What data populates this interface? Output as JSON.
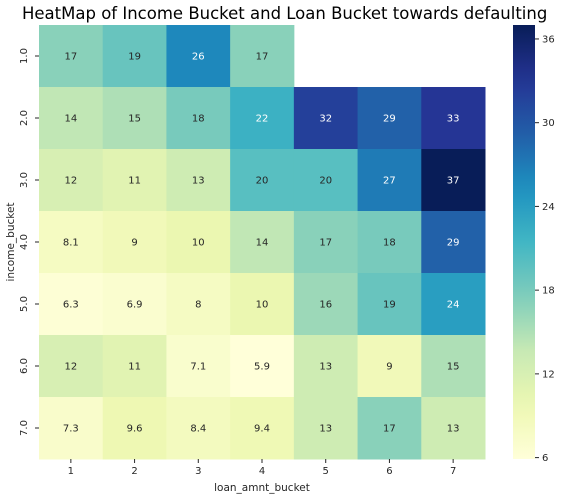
{
  "chart_data": {
    "type": "heatmap",
    "title": "HeatMap of Income Bucket and Loan Bucket towards defaulting",
    "xlabel": "loan_amnt_bucket",
    "ylabel": "income_bucket",
    "x_categories": [
      "1",
      "2",
      "3",
      "4",
      "5",
      "6",
      "7"
    ],
    "y_categories": [
      "1.0",
      "2.0",
      "3.0",
      "4.0",
      "5.0",
      "6.0",
      "7.0"
    ],
    "values": [
      [
        17,
        19,
        26,
        17,
        null,
        null,
        null
      ],
      [
        14,
        15,
        18,
        22,
        32,
        29,
        33
      ],
      [
        12,
        11,
        13,
        20,
        20,
        27,
        37
      ],
      [
        8.1,
        9,
        10,
        14,
        17,
        18,
        29
      ],
      [
        6.3,
        6.9,
        8,
        10,
        16,
        19,
        24
      ],
      [
        12,
        11,
        7.1,
        5.9,
        13,
        9,
        15
      ],
      [
        7.3,
        9.6,
        8.4,
        9.4,
        13,
        17,
        13
      ]
    ],
    "cell_labels": [
      [
        "17",
        "19",
        "26",
        "17",
        "",
        "",
        ""
      ],
      [
        "14",
        "15",
        "18",
        "22",
        "32",
        "29",
        "33"
      ],
      [
        "12",
        "11",
        "13",
        "20",
        "20",
        "27",
        "37"
      ],
      [
        "8.1",
        "9",
        "10",
        "14",
        "17",
        "18",
        "29"
      ],
      [
        "6.3",
        "6.9",
        "8",
        "10",
        "16",
        "19",
        "24"
      ],
      [
        "12",
        "11",
        "7.1",
        "5.9",
        "13",
        "9",
        "15"
      ],
      [
        "7.3",
        "9.6",
        "8.4",
        "9.4",
        "13",
        "17",
        "13"
      ]
    ],
    "colormap": "YlGnBu",
    "colorbar": {
      "range": [
        5.9,
        37
      ],
      "ticks": [
        6,
        12,
        18,
        24,
        30,
        36
      ],
      "placement": "right"
    },
    "grid": false
  }
}
